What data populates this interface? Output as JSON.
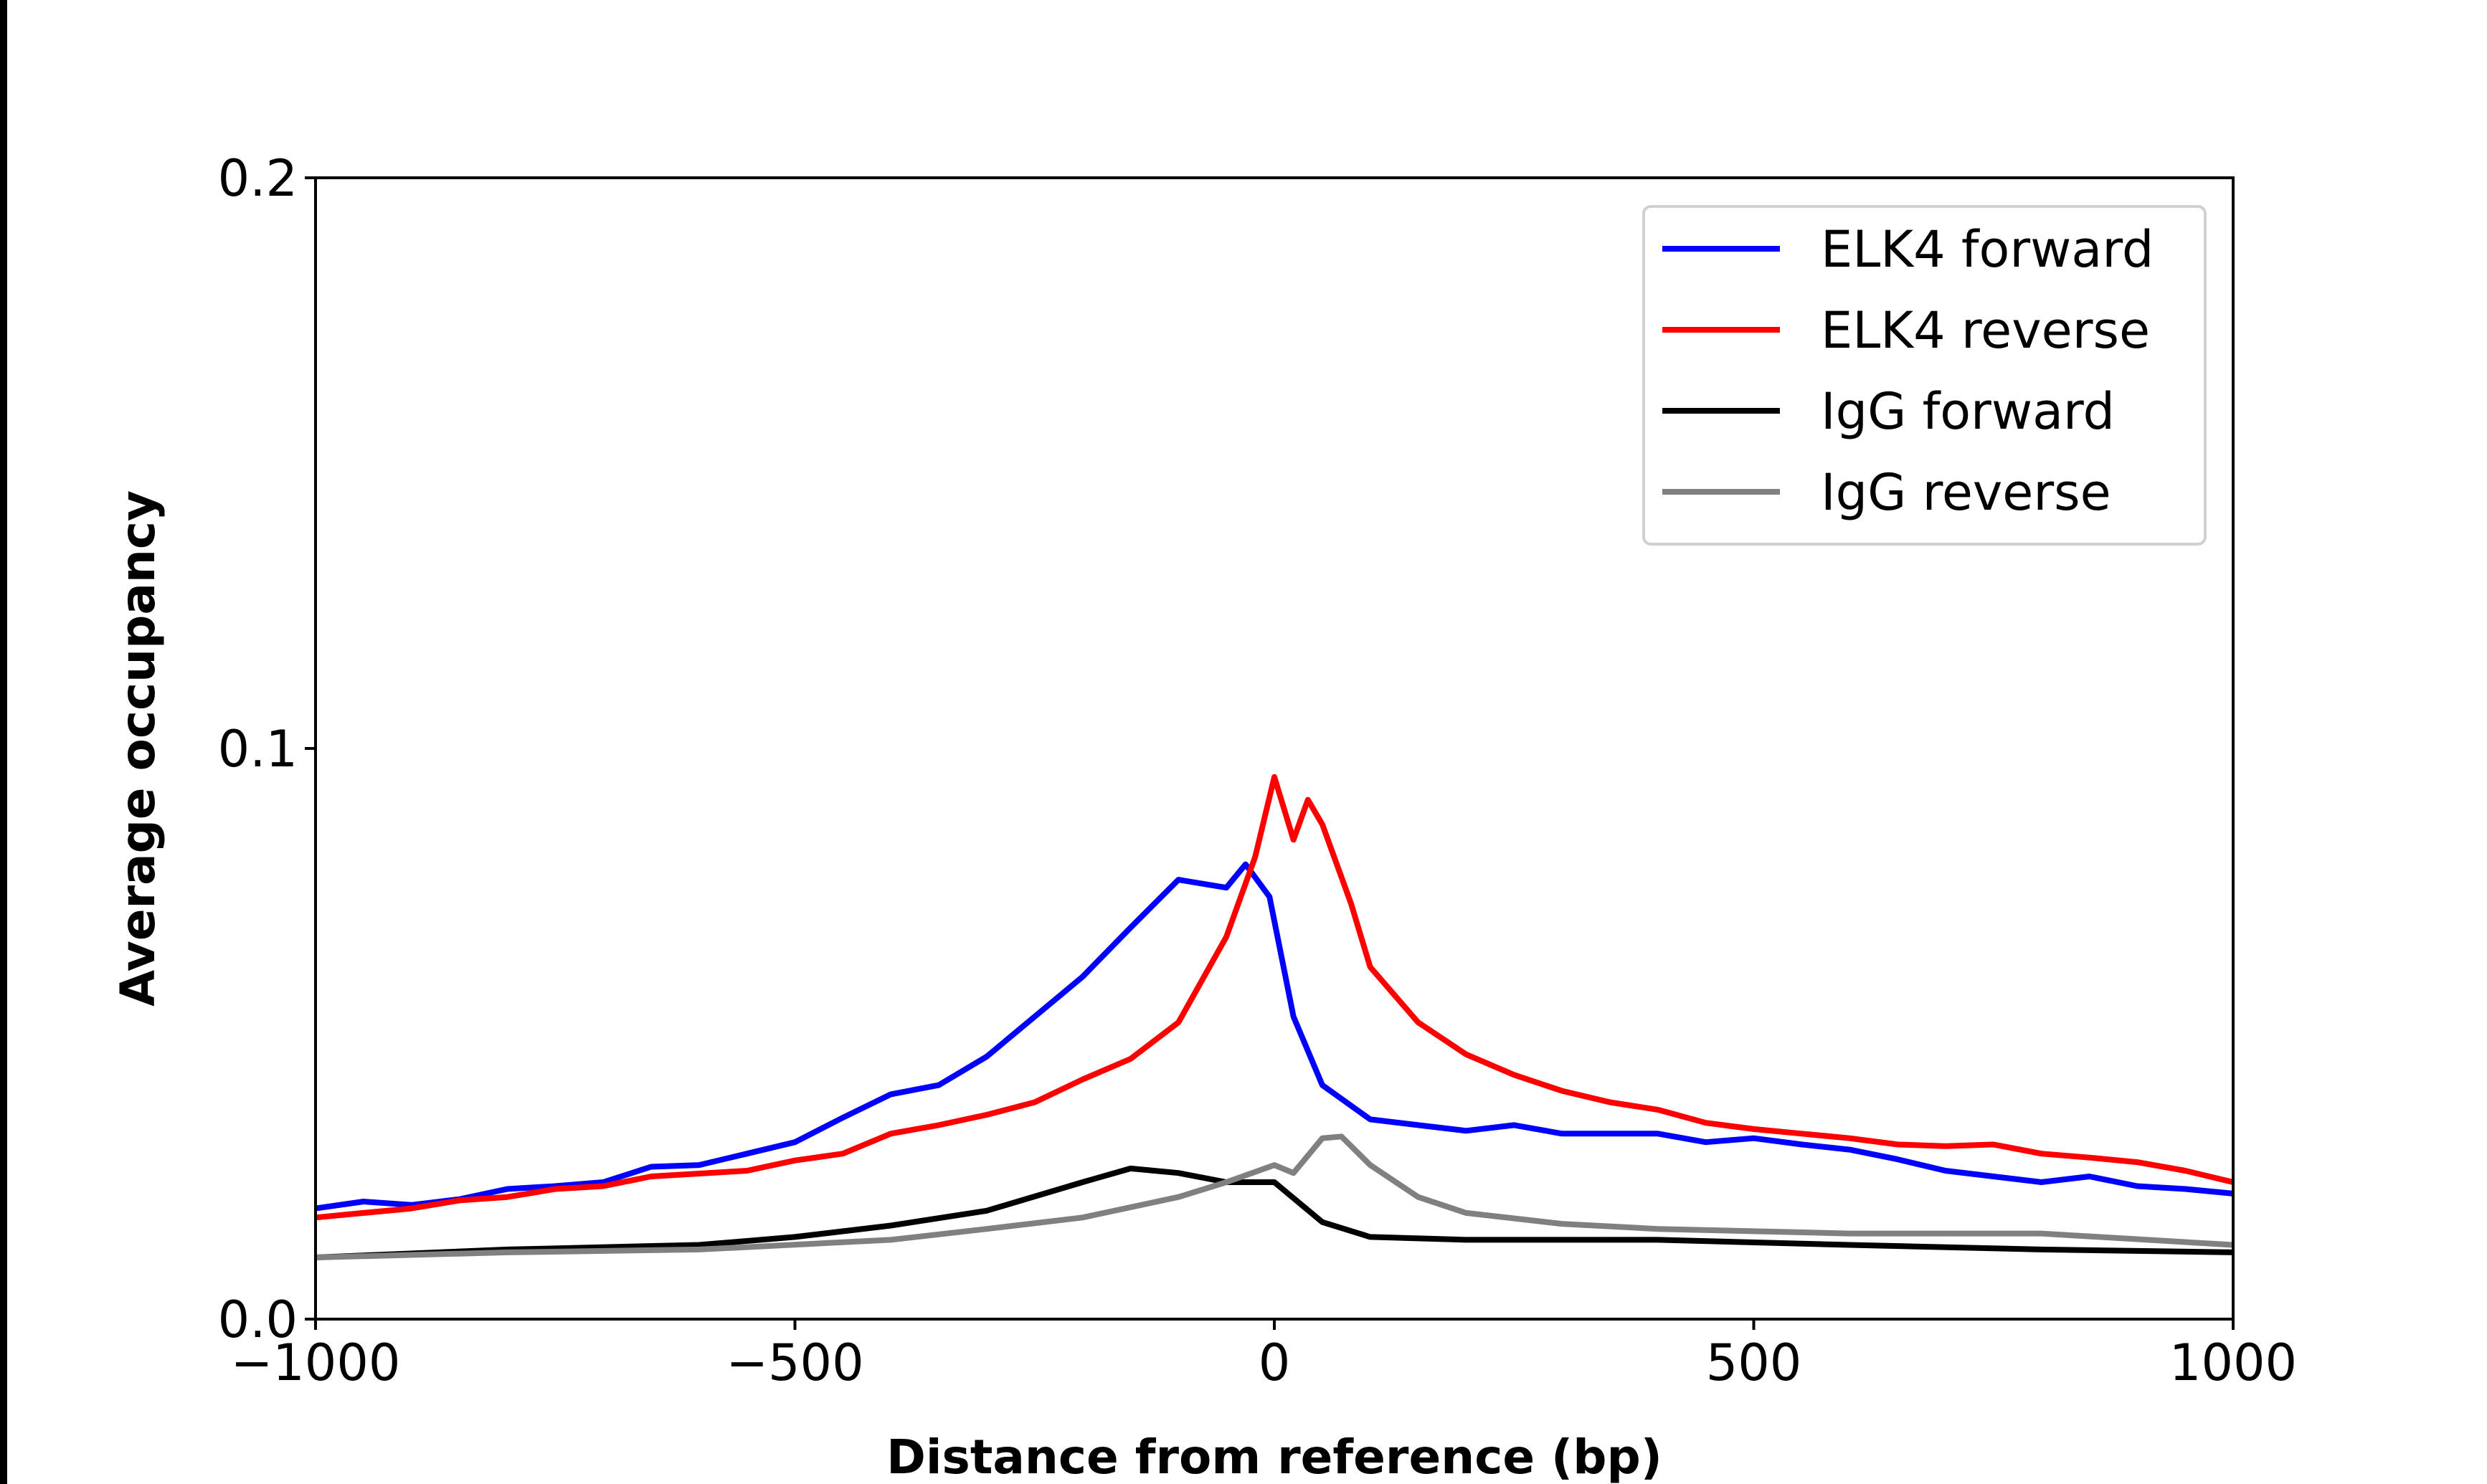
{
  "chart_data": {
    "type": "line",
    "xlabel": "Distance from reference (bp)",
    "ylabel": "Average occupancy",
    "xlim": [
      -1000,
      1000
    ],
    "ylim": [
      0,
      0.2
    ],
    "xticks": [
      -1000,
      -500,
      0,
      500,
      1000
    ],
    "xtick_labels": [
      "−1000",
      "−500",
      "0",
      "500",
      "1000"
    ],
    "yticks": [
      0,
      0.1,
      0.2
    ],
    "ytick_labels": [
      "0.0",
      "0.1",
      "0.2"
    ],
    "grid": false,
    "legend_position": "top-right",
    "series": [
      {
        "name": "ELK4 forward",
        "color": "#0000ff",
        "x": [
          -1000,
          -950,
          -900,
          -850,
          -800,
          -750,
          -700,
          -650,
          -600,
          -550,
          -500,
          -450,
          -400,
          -350,
          -300,
          -250,
          -200,
          -150,
          -100,
          -50,
          -30,
          -5,
          20,
          50,
          100,
          150,
          200,
          250,
          300,
          350,
          400,
          450,
          500,
          550,
          600,
          650,
          700,
          750,
          800,
          850,
          900,
          950,
          1000
        ],
        "y": [
          0.0194,
          0.0206,
          0.02,
          0.021,
          0.0228,
          0.0233,
          0.024,
          0.0267,
          0.027,
          0.029,
          0.031,
          0.0353,
          0.0394,
          0.041,
          0.046,
          0.053,
          0.06,
          0.0686,
          0.077,
          0.0756,
          0.0797,
          0.074,
          0.053,
          0.041,
          0.035,
          0.034,
          0.033,
          0.034,
          0.0325,
          0.0325,
          0.0325,
          0.031,
          0.0317,
          0.0306,
          0.0297,
          0.028,
          0.026,
          0.025,
          0.024,
          0.025,
          0.0233,
          0.0228,
          0.022
        ]
      },
      {
        "name": "ELK4 reverse",
        "color": "#ff0000",
        "x": [
          -1000,
          -950,
          -900,
          -850,
          -800,
          -750,
          -700,
          -650,
          -600,
          -550,
          -500,
          -450,
          -400,
          -350,
          -300,
          -250,
          -200,
          -150,
          -100,
          -50,
          -20,
          0,
          20,
          35,
          50,
          80,
          100,
          150,
          200,
          250,
          300,
          350,
          400,
          450,
          500,
          550,
          600,
          650,
          700,
          750,
          800,
          850,
          900,
          950,
          1000
        ],
        "y": [
          0.0178,
          0.0186,
          0.0194,
          0.0208,
          0.0214,
          0.0228,
          0.0233,
          0.025,
          0.0255,
          0.026,
          0.0278,
          0.029,
          0.0325,
          0.034,
          0.0358,
          0.038,
          0.042,
          0.0456,
          0.052,
          0.067,
          0.081,
          0.095,
          0.084,
          0.091,
          0.0867,
          0.0728,
          0.0617,
          0.052,
          0.0464,
          0.0428,
          0.04,
          0.038,
          0.0367,
          0.0344,
          0.0333,
          0.0325,
          0.0317,
          0.0306,
          0.0303,
          0.0306,
          0.029,
          0.0283,
          0.0275,
          0.026,
          0.024
        ]
      },
      {
        "name": "IgG forward",
        "color": "#000000",
        "x": [
          -1000,
          -800,
          -600,
          -500,
          -400,
          -300,
          -200,
          -150,
          -100,
          -50,
          0,
          50,
          100,
          200,
          400,
          600,
          800,
          1000
        ],
        "y": [
          0.0108,
          0.0122,
          0.013,
          0.0144,
          0.0164,
          0.019,
          0.024,
          0.0264,
          0.0256,
          0.024,
          0.024,
          0.017,
          0.0144,
          0.0139,
          0.0139,
          0.013,
          0.0122,
          0.0117
        ]
      },
      {
        "name": "IgG reverse",
        "color": "#808080",
        "x": [
          -1000,
          -800,
          -600,
          -400,
          -300,
          -200,
          -100,
          -50,
          0,
          20,
          50,
          70,
          100,
          150,
          200,
          300,
          400,
          600,
          800,
          1000
        ],
        "y": [
          0.0108,
          0.0117,
          0.0122,
          0.0139,
          0.0158,
          0.0178,
          0.0214,
          0.024,
          0.027,
          0.0256,
          0.0317,
          0.032,
          0.027,
          0.0214,
          0.0186,
          0.0167,
          0.0158,
          0.015,
          0.015,
          0.013
        ]
      }
    ]
  }
}
